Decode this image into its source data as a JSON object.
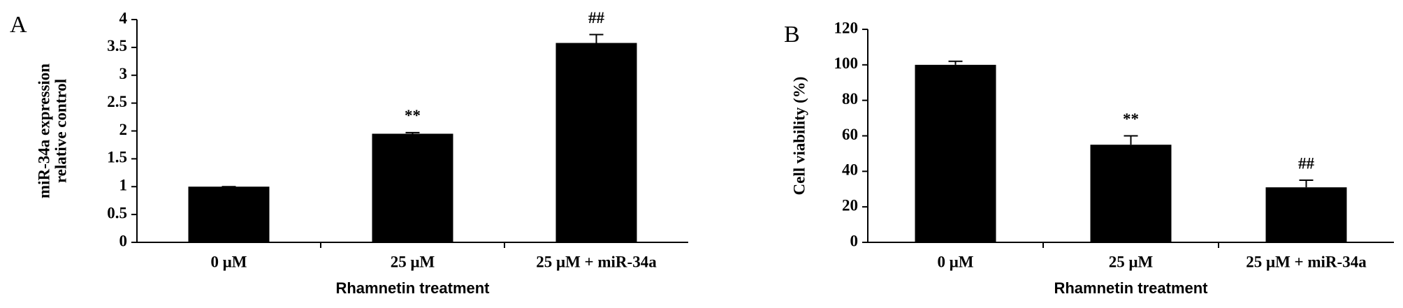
{
  "chart_data": [
    {
      "type": "bar",
      "panel": "A",
      "ylabel": [
        "miR-34a expression",
        "relative control"
      ],
      "xlabel": "Rhamnetin treatment",
      "categories": [
        "0 μM",
        "25 μM",
        "25 μM + miR-34a"
      ],
      "values": [
        1,
        1.95,
        3.58
      ],
      "errors": [
        0,
        0.02,
        0.15
      ],
      "annotations": [
        null,
        "**",
        "##"
      ],
      "color": "#000000",
      "ylim": [
        0,
        4
      ],
      "yticks": [
        0,
        0.5,
        1,
        1.5,
        2,
        2.5,
        3,
        3.5,
        4
      ]
    },
    {
      "type": "bar",
      "panel": "B",
      "ylabel": [
        "Cell viability (%)"
      ],
      "xlabel": "Rhamnetin treatment",
      "categories": [
        "0 μM",
        "25 μM",
        "25 μM + miR-34a"
      ],
      "values": [
        100,
        55,
        31
      ],
      "errors": [
        2,
        5,
        4
      ],
      "annotations": [
        null,
        "**",
        "##"
      ],
      "color": "#000000",
      "ylim": [
        0,
        120
      ],
      "yticks": [
        0,
        20,
        40,
        60,
        80,
        100,
        120
      ]
    }
  ]
}
